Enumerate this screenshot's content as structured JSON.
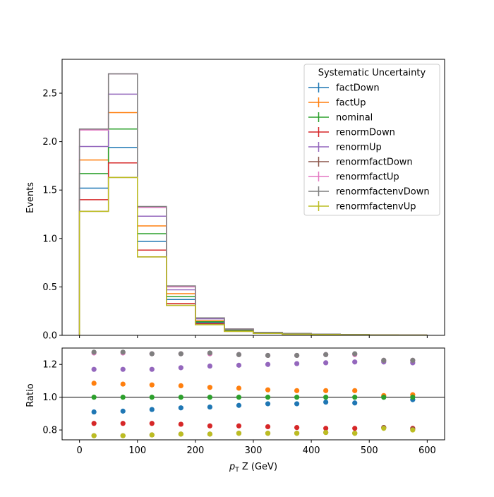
{
  "chart_data": [
    {
      "type": "step",
      "panel": "main",
      "ylabel": "Events",
      "xlabel": "",
      "xlim": [
        -30,
        630
      ],
      "ylim": [
        0,
        2.85
      ],
      "yticks": [
        "0.0",
        "0.5",
        "1.0",
        "1.5",
        "2.0",
        "2.5"
      ],
      "ytick_values": [
        0,
        0.5,
        1.0,
        1.5,
        2.0,
        2.5
      ],
      "xticks": [
        0,
        100,
        200,
        300,
        400,
        500,
        600
      ],
      "bin_edges": [
        0,
        50,
        100,
        150,
        200,
        250,
        300,
        350,
        400,
        450,
        500,
        550,
        600
      ],
      "legend": {
        "title": "Systematic Uncertainty",
        "placement": "top-right"
      },
      "series": [
        {
          "name": "factDown",
          "color": "#1f77b4",
          "values": [
            1.52,
            1.94,
            0.97,
            0.37,
            0.13,
            0.05,
            0.024,
            0.016,
            0.01,
            0.006,
            0.004,
            0.003
          ]
        },
        {
          "name": "factUp",
          "color": "#ff7f0e",
          "values": [
            1.81,
            2.3,
            1.13,
            0.43,
            0.15,
            0.056,
            0.026,
            0.017,
            0.011,
            0.007,
            0.005,
            0.003
          ]
        },
        {
          "name": "nominal",
          "color": "#2ca02c",
          "values": [
            1.67,
            2.13,
            1.05,
            0.4,
            0.14,
            0.052,
            0.025,
            0.016,
            0.01,
            0.007,
            0.004,
            0.003
          ]
        },
        {
          "name": "renormDown",
          "color": "#d62728",
          "values": [
            1.4,
            1.78,
            0.88,
            0.33,
            0.12,
            0.043,
            0.021,
            0.013,
            0.008,
            0.006,
            0.004,
            0.002
          ]
        },
        {
          "name": "renormUp",
          "color": "#9467bd",
          "values": [
            1.95,
            2.49,
            1.23,
            0.47,
            0.17,
            0.062,
            0.03,
            0.019,
            0.012,
            0.008,
            0.005,
            0.003
          ]
        },
        {
          "name": "renormfactDown",
          "color": "#8c564b",
          "values": [
            1.28,
            1.63,
            0.81,
            0.31,
            0.11,
            0.041,
            0.02,
            0.012,
            0.008,
            0.005,
            0.003,
            0.002
          ]
        },
        {
          "name": "renormfactUp",
          "color": "#e377c2",
          "values": [
            2.12,
            2.7,
            1.32,
            0.5,
            0.18,
            0.066,
            0.031,
            0.02,
            0.013,
            0.009,
            0.005,
            0.003
          ]
        },
        {
          "name": "renormfactenvDown",
          "color": "#7f7f7f",
          "values": [
            2.13,
            2.7,
            1.33,
            0.51,
            0.18,
            0.066,
            0.031,
            0.02,
            0.013,
            0.009,
            0.005,
            0.003
          ]
        },
        {
          "name": "renormfactenvUp",
          "color": "#bcbd22",
          "values": [
            1.28,
            1.63,
            0.81,
            0.31,
            0.11,
            0.041,
            0.02,
            0.012,
            0.008,
            0.005,
            0.003,
            0.002
          ]
        }
      ]
    },
    {
      "type": "scatter",
      "panel": "ratio",
      "ylabel": "Ratio",
      "xlabel": "p_T Z (GeV)",
      "xlabel_parts": {
        "italic": "p",
        "sub": "T",
        "rest": " Z (GeV)"
      },
      "xlim": [
        -30,
        630
      ],
      "ylim": [
        0.74,
        1.3
      ],
      "yticks": [
        "0.8",
        "1.0",
        "1.2"
      ],
      "ytick_values": [
        0.8,
        1.0,
        1.2
      ],
      "xticks": [
        "0",
        "100",
        "200",
        "300",
        "400",
        "500",
        "600"
      ],
      "xtick_values": [
        0,
        100,
        200,
        300,
        400,
        500,
        600
      ],
      "reference_line": 1.0,
      "x": [
        25,
        75,
        125,
        175,
        225,
        275,
        325,
        375,
        425,
        475,
        525,
        575
      ],
      "series": [
        {
          "name": "factDown",
          "color": "#1f77b4",
          "values": [
            0.91,
            0.915,
            0.925,
            0.935,
            0.94,
            0.95,
            0.96,
            0.96,
            0.97,
            0.965,
            1.0,
            0.985
          ]
        },
        {
          "name": "factUp",
          "color": "#ff7f0e",
          "values": [
            1.085,
            1.08,
            1.075,
            1.07,
            1.06,
            1.055,
            1.045,
            1.04,
            1.04,
            1.04,
            1.01,
            1.015
          ]
        },
        {
          "name": "nominal",
          "color": "#2ca02c",
          "values": [
            1.0,
            1.0,
            1.0,
            1.0,
            1.0,
            1.0,
            1.0,
            1.0,
            1.0,
            1.0,
            1.0,
            1.0
          ]
        },
        {
          "name": "renormDown",
          "color": "#d62728",
          "values": [
            0.84,
            0.84,
            0.84,
            0.835,
            0.825,
            0.825,
            0.82,
            0.815,
            0.81,
            0.81,
            0.815,
            0.81
          ]
        },
        {
          "name": "renormUp",
          "color": "#9467bd",
          "values": [
            1.17,
            1.17,
            1.17,
            1.18,
            1.19,
            1.195,
            1.2,
            1.205,
            1.21,
            1.215,
            1.215,
            1.21
          ]
        },
        {
          "name": "renormfactDown",
          "color": "#8c564b",
          "values": [
            0.765,
            0.765,
            0.77,
            0.775,
            0.775,
            0.78,
            0.78,
            0.78,
            0.785,
            0.78,
            0.815,
            0.805
          ]
        },
        {
          "name": "renormfactUp",
          "color": "#e377c2",
          "values": [
            1.27,
            1.27,
            1.265,
            1.265,
            1.265,
            1.26,
            1.255,
            1.255,
            1.26,
            1.26,
            1.225,
            1.225
          ]
        },
        {
          "name": "renormfactenvDown",
          "color": "#7f7f7f",
          "values": [
            1.275,
            1.275,
            1.265,
            1.265,
            1.27,
            1.26,
            1.255,
            1.255,
            1.26,
            1.265,
            1.225,
            1.225
          ]
        },
        {
          "name": "renormfactenvUp",
          "color": "#bcbd22",
          "values": [
            0.765,
            0.765,
            0.77,
            0.775,
            0.775,
            0.78,
            0.78,
            0.78,
            0.785,
            0.78,
            0.81,
            0.8
          ]
        }
      ]
    }
  ]
}
